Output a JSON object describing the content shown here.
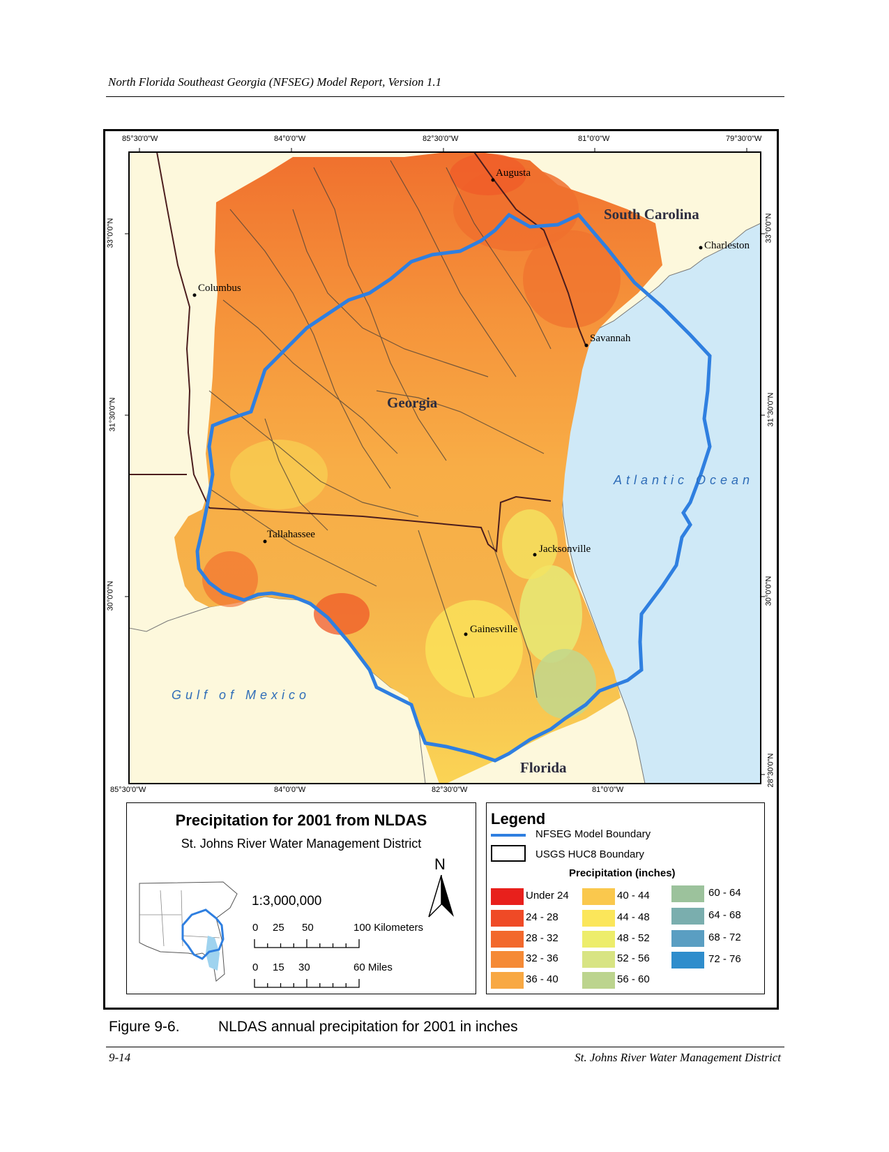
{
  "header": {
    "running_title": "North Florida Southeast Georgia (NFSEG) Model Report, Version 1.1"
  },
  "footer": {
    "page_number": "9-14",
    "organization": "St. Johns River Water Management District"
  },
  "figure": {
    "number": "Figure 9-6.",
    "caption": "NLDAS annual precipitation for 2001 in inches"
  },
  "map": {
    "longitude_ticks": [
      "85°30'0\"W",
      "84°0'0\"W",
      "82°30'0\"W",
      "81°0'0\"W",
      "79°30'0\"W"
    ],
    "longitude_ticks_bottom": [
      "85°30'0\"W",
      "84°0'0\"W",
      "82°30'0\"W",
      "81°0'0\"W"
    ],
    "latitude_ticks_left": [
      "33°0'0\"N",
      "31°30'0\"N",
      "30°0'0\"N"
    ],
    "latitude_ticks_right": [
      "33°0'0\"N",
      "31°30'0\"N",
      "30°0'0\"N",
      "28°30'0\"N"
    ],
    "cities": {
      "augusta": "Augusta",
      "columbus": "Columbus",
      "charleston": "Charleston",
      "savannah": "Savannah",
      "tallahassee": "Tallahassee",
      "jacksonville": "Jacksonville",
      "gainesville": "Gainesville"
    },
    "regions": {
      "south_carolina": "South Carolina",
      "georgia": "Georgia",
      "florida": "Florida"
    },
    "water_bodies": {
      "atlantic": "Atlantic Ocean",
      "gulf": "Gulf of Mexico"
    },
    "colors": {
      "ocean": "#cfe9f7",
      "land": "#fdf8dc",
      "boundary": "#2f7fe0"
    }
  },
  "title_panel": {
    "title": "Precipitation for 2001 from NLDAS",
    "subtitle": "St. Johns River Water Management District",
    "north_arrow": "N",
    "scale_ratio": "1:3,000,000",
    "km_ticks": [
      "0",
      "25",
      "50",
      "100 Kilometers"
    ],
    "mile_ticks": [
      "0",
      "15",
      "30",
      "60 Miles"
    ]
  },
  "legend": {
    "title": "Legend",
    "model_boundary": "NFSEG Model Boundary",
    "huc_boundary": "USGS HUC8 Boundary",
    "precip_title": "Precipitation (inches)",
    "classes": [
      {
        "label": "Under 24",
        "color": "#e8201c"
      },
      {
        "label": "24 - 28",
        "color": "#ef4a26"
      },
      {
        "label": "28 - 32",
        "color": "#f2682c"
      },
      {
        "label": "32 - 36",
        "color": "#f58a36"
      },
      {
        "label": "36 - 40",
        "color": "#f8a843"
      },
      {
        "label": "40 - 44",
        "color": "#fac84d"
      },
      {
        "label": "44 - 48",
        "color": "#fbe65a"
      },
      {
        "label": "48 - 52",
        "color": "#eded6b"
      },
      {
        "label": "52 - 56",
        "color": "#d8e483"
      },
      {
        "label": "56 - 60",
        "color": "#bcd48e"
      },
      {
        "label": "60 - 64",
        "color": "#9cc29c"
      },
      {
        "label": "64 - 68",
        "color": "#7aaeae"
      },
      {
        "label": "68 - 72",
        "color": "#5a9ec2"
      },
      {
        "label": "72 - 76",
        "color": "#2f8dcc"
      }
    ]
  }
}
